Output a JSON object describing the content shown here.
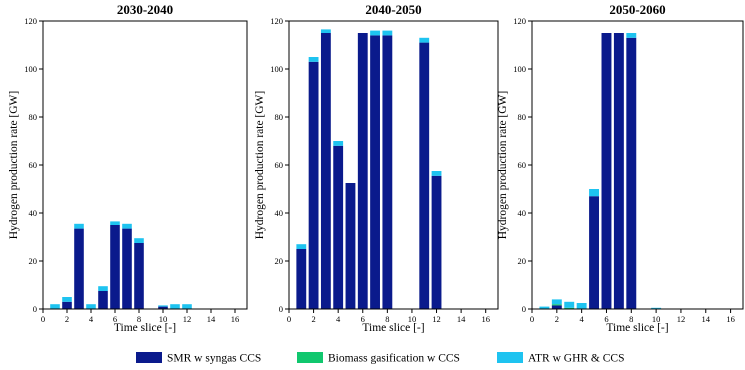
{
  "legend": {
    "items": [
      {
        "label": "SMR w syngas CCS",
        "color": "#0a1a8c"
      },
      {
        "label": "Biomass gasification w CCS",
        "color": "#10c76e"
      },
      {
        "label": "ATR w GHR & CCS",
        "color": "#1ec3f0"
      }
    ]
  },
  "chart_data": [
    {
      "type": "bar",
      "stacked": true,
      "title": "2030-2040",
      "xlabel": "Time slice [-]",
      "ylabel": "Hydrogen production rate [GW]",
      "xlim": [
        0,
        17
      ],
      "ylim": [
        0,
        120
      ],
      "xticks": [
        "0",
        "2",
        "4",
        "6",
        "8",
        "10",
        "12",
        "14",
        "16"
      ],
      "yticks": [
        "0",
        "20",
        "40",
        "60",
        "80",
        "100",
        "120"
      ],
      "x": [
        1,
        2,
        3,
        4,
        5,
        6,
        7,
        8,
        9,
        10,
        11,
        12,
        13,
        14,
        15,
        16
      ],
      "series": [
        {
          "name": "SMR w syngas CCS",
          "values": [
            0,
            3,
            33.5,
            0,
            7.5,
            35,
            33.5,
            27.5,
            0,
            1,
            0,
            0,
            0,
            0,
            0,
            0
          ]
        },
        {
          "name": "Biomass gasification w CCS",
          "values": [
            0,
            0,
            0,
            0,
            0,
            0,
            0,
            0,
            0,
            0,
            0,
            0,
            0,
            0,
            0,
            0
          ]
        },
        {
          "name": "ATR w GHR & CCS",
          "values": [
            2,
            2,
            2,
            2,
            2,
            1.5,
            2,
            2,
            0,
            0.5,
            2,
            2,
            0,
            0,
            0,
            0
          ]
        }
      ]
    },
    {
      "type": "bar",
      "stacked": true,
      "title": "2040-2050",
      "xlabel": "Time slice [-]",
      "ylabel": "Hydrogen production rate [GW]",
      "xlim": [
        0,
        17
      ],
      "ylim": [
        0,
        120
      ],
      "xticks": [
        "0",
        "2",
        "4",
        "6",
        "8",
        "10",
        "12",
        "14",
        "16"
      ],
      "yticks": [
        "0",
        "20",
        "40",
        "60",
        "80",
        "100",
        "120"
      ],
      "x": [
        1,
        2,
        3,
        4,
        5,
        6,
        7,
        8,
        9,
        10,
        11,
        12,
        13,
        14,
        15,
        16
      ],
      "series": [
        {
          "name": "SMR w syngas CCS",
          "values": [
            25,
            103,
            115,
            68,
            52.5,
            115,
            114,
            114,
            0,
            0,
            111,
            55.5,
            0,
            0,
            0,
            0
          ]
        },
        {
          "name": "Biomass gasification w CCS",
          "values": [
            0,
            0,
            0,
            0,
            0,
            0,
            0,
            0,
            0,
            0,
            0,
            0,
            0,
            0,
            0,
            0
          ]
        },
        {
          "name": "ATR w GHR & CCS",
          "values": [
            2,
            2,
            1.5,
            2,
            0,
            0,
            2,
            2,
            0,
            0,
            2,
            2,
            0,
            0,
            0,
            0
          ]
        }
      ]
    },
    {
      "type": "bar",
      "stacked": true,
      "title": "2050-2060",
      "xlabel": "Time slice [-]",
      "ylabel": "Hydrogen production rate [GW]",
      "xlim": [
        0,
        17
      ],
      "ylim": [
        0,
        120
      ],
      "xticks": [
        "0",
        "2",
        "4",
        "6",
        "8",
        "10",
        "12",
        "14",
        "16"
      ],
      "yticks": [
        "0",
        "20",
        "40",
        "60",
        "80",
        "100",
        "120"
      ],
      "x": [
        1,
        2,
        3,
        4,
        5,
        6,
        7,
        8,
        9,
        10,
        11,
        12,
        13,
        14,
        15,
        16
      ],
      "series": [
        {
          "name": "SMR w syngas CCS",
          "values": [
            0,
            1.5,
            0,
            0,
            47,
            115,
            115,
            113,
            0,
            0,
            0,
            0,
            0,
            0,
            0,
            0
          ]
        },
        {
          "name": "Biomass gasification w CCS",
          "values": [
            0,
            0.5,
            0.5,
            0,
            0,
            0,
            0,
            0,
            0,
            0,
            0,
            0,
            0,
            0,
            0,
            0
          ]
        },
        {
          "name": "ATR w GHR & CCS",
          "values": [
            1,
            2,
            2.5,
            2.5,
            3,
            0,
            0,
            2,
            0,
            0.5,
            0,
            0,
            0,
            0,
            0,
            0
          ]
        }
      ]
    }
  ]
}
